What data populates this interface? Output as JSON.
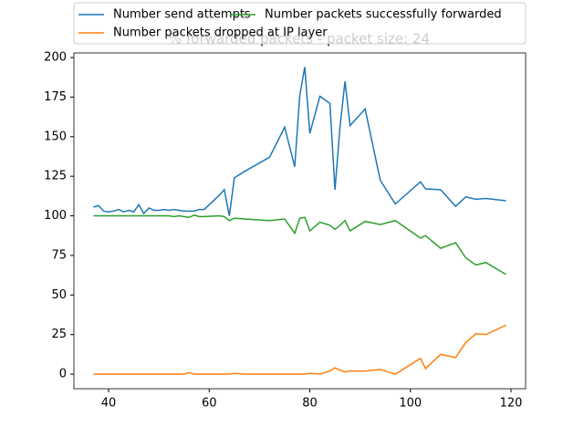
{
  "chart_data": {
    "type": "line",
    "title": "% forwarded packets - packet size: 24",
    "x": [
      37,
      38,
      39,
      40,
      41,
      42,
      43,
      44,
      45,
      46,
      47,
      48,
      49,
      50,
      51,
      52,
      53,
      54,
      55,
      56,
      57,
      58,
      59,
      62,
      63,
      64,
      65,
      67,
      72,
      75,
      77,
      78,
      79,
      80,
      82,
      84,
      85,
      86,
      87,
      88,
      91,
      94,
      97,
      102,
      103,
      106,
      109,
      111,
      113,
      115,
      119
    ],
    "series": [
      {
        "name": "Number send attempts",
        "color": "#1f77b4",
        "values": [
          105.5,
          106.5,
          103,
          102.5,
          103,
          104,
          102.5,
          103.5,
          102.5,
          107,
          101.5,
          105,
          103.5,
          103.5,
          104,
          103.5,
          104,
          103.5,
          103,
          103,
          103,
          104,
          104,
          113,
          116.5,
          100,
          124,
          128,
          137,
          156,
          131,
          176,
          194,
          152,
          175.5,
          171,
          116.5,
          156,
          185,
          157,
          167.5,
          122.5,
          107.5,
          121.5,
          117,
          116.5,
          106,
          112,
          110.5,
          111,
          109.5
        ]
      },
      {
        "name": "Number packets successfully forwarded",
        "color": "#2ca02c",
        "values": [
          100,
          100,
          100,
          100,
          100,
          100,
          100,
          100,
          100,
          100,
          100,
          100,
          100,
          100,
          100,
          100,
          99.5,
          100,
          99.5,
          99,
          100.5,
          99.5,
          99.5,
          100,
          99.5,
          97,
          98.5,
          98,
          97,
          98,
          89,
          98.5,
          99,
          90.5,
          96,
          94,
          91.5,
          94,
          97,
          90.5,
          96.5,
          94.5,
          97,
          86,
          87.5,
          79.5,
          83,
          73.5,
          69,
          70.5,
          63
        ]
      },
      {
        "name": "Number packets dropped at IP layer",
        "color": "#ff7f0e",
        "values": [
          0,
          0,
          0,
          0,
          0,
          0,
          0,
          0,
          0,
          0,
          0,
          0,
          0,
          0,
          0,
          0,
          0,
          0,
          0,
          1,
          0,
          0,
          0,
          0,
          0,
          0,
          0.5,
          0,
          0,
          0,
          0,
          0,
          0,
          0.5,
          0,
          2,
          4,
          2.5,
          1.5,
          2,
          2,
          3,
          0,
          10,
          3.5,
          12.5,
          10.5,
          20,
          25.5,
          25,
          31
        ]
      }
    ],
    "xlim": [
      33.1,
      122.9
    ],
    "ylim": [
      -9.2,
      202.9
    ],
    "xticks": [
      40,
      60,
      80,
      100,
      120
    ],
    "yticks": [
      0,
      25,
      50,
      75,
      100,
      125,
      150,
      175,
      200
    ],
    "legend": "upper center"
  }
}
